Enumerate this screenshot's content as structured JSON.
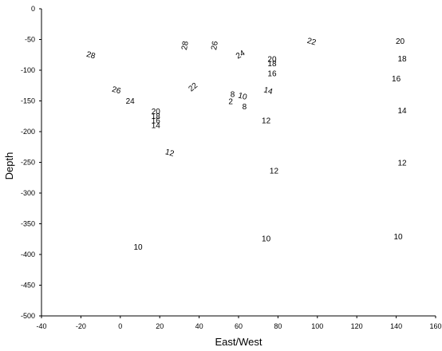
{
  "chart_data": {
    "type": "scatter",
    "title": "",
    "xlabel": "East/West",
    "ylabel": "Depth",
    "xlim": [
      -40,
      160
    ],
    "ylim": [
      -500,
      0
    ],
    "x_ticks": [
      "-40",
      "-20",
      "0",
      "20",
      "40",
      "60",
      "80",
      "100",
      "120",
      "140",
      "160"
    ],
    "y_ticks": [
      "0",
      "-50",
      "-100",
      "-150",
      "-200",
      "-250",
      "-300",
      "-350",
      "-400",
      "-450",
      "-500"
    ],
    "grid": false,
    "legend": "none",
    "contour_labels": [
      {
        "text": "28",
        "x": -15,
        "y": -76,
        "rot": 15
      },
      {
        "text": "26",
        "x": -2,
        "y": -133,
        "rot": 15
      },
      {
        "text": "24",
        "x": 5,
        "y": -151,
        "rot": 0
      },
      {
        "text": "20",
        "x": 18,
        "y": -168,
        "rot": 0
      },
      {
        "text": "18",
        "x": 18,
        "y": -176,
        "rot": 0
      },
      {
        "text": "16",
        "x": 18,
        "y": -183,
        "rot": 0
      },
      {
        "text": "14",
        "x": 18,
        "y": -191,
        "rot": 0
      },
      {
        "text": "12",
        "x": 25,
        "y": -235,
        "rot": 15
      },
      {
        "text": "10",
        "x": 9,
        "y": -389,
        "rot": 0
      },
      {
        "text": "28",
        "x": 33,
        "y": -60,
        "rot": -80
      },
      {
        "text": "26",
        "x": 48,
        "y": -60,
        "rot": -80
      },
      {
        "text": "24",
        "x": 61,
        "y": -75,
        "rot": -30
      },
      {
        "text": "22",
        "x": 37,
        "y": -128,
        "rot": -40
      },
      {
        "text": "8",
        "x": 57,
        "y": -140,
        "rot": 0
      },
      {
        "text": "2",
        "x": 56,
        "y": -152,
        "rot": 0
      },
      {
        "text": "10",
        "x": 62,
        "y": -143,
        "rot": 15
      },
      {
        "text": "8",
        "x": 63,
        "y": -160,
        "rot": 0
      },
      {
        "text": "20",
        "x": 77,
        "y": -83,
        "rot": 0
      },
      {
        "text": "18",
        "x": 77,
        "y": -90,
        "rot": 0
      },
      {
        "text": "16",
        "x": 77,
        "y": -106,
        "rot": 0
      },
      {
        "text": "14",
        "x": 75,
        "y": -134,
        "rot": 15
      },
      {
        "text": "12",
        "x": 74,
        "y": -183,
        "rot": 0
      },
      {
        "text": "12",
        "x": 78,
        "y": -265,
        "rot": 0
      },
      {
        "text": "10",
        "x": 74,
        "y": -375,
        "rot": 0
      },
      {
        "text": "22",
        "x": 97,
        "y": -54,
        "rot": 15
      },
      {
        "text": "20",
        "x": 142,
        "y": -54,
        "rot": 0
      },
      {
        "text": "18",
        "x": 143,
        "y": -82,
        "rot": 0
      },
      {
        "text": "16",
        "x": 140,
        "y": -115,
        "rot": 0
      },
      {
        "text": "14",
        "x": 143,
        "y": -167,
        "rot": 0
      },
      {
        "text": "12",
        "x": 143,
        "y": -252,
        "rot": 0
      },
      {
        "text": "10",
        "x": 141,
        "y": -372,
        "rot": 0
      }
    ]
  }
}
